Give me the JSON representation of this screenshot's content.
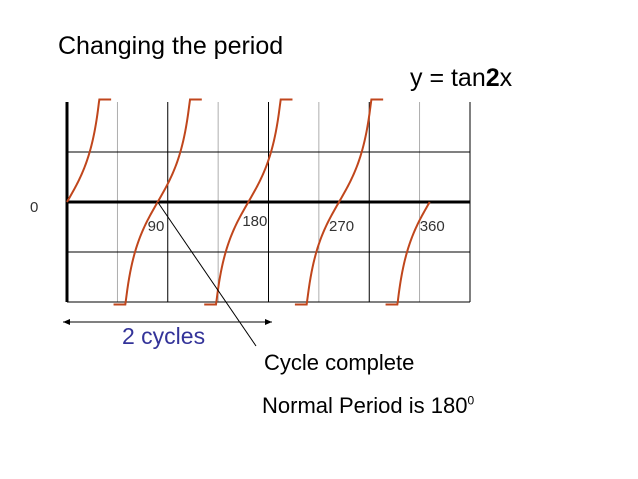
{
  "slide": {
    "title": "Changing the period",
    "equation": {
      "prefix": "y = tan",
      "bold": "2",
      "suffix": "x"
    },
    "span_label": "2 cycles",
    "note_complete": "Cycle complete",
    "note_period": "Normal Period is 180",
    "note_period_degree": "0"
  },
  "colors": {
    "curve": "#c0461c",
    "grid": "#000000",
    "span_label": "#333399"
  },
  "chart_data": {
    "type": "line",
    "function": "y = tan(2x)",
    "x_unit": "degrees",
    "xlim": [
      0,
      400
    ],
    "ylim": [
      -2,
      2
    ],
    "origin_label": "0",
    "x_tick_labels": [
      {
        "x": 90,
        "label": "90"
      },
      {
        "x": 180,
        "label": "180"
      },
      {
        "x": 270,
        "label": "270"
      },
      {
        "x": 360,
        "label": "360"
      }
    ],
    "asymptotes": [
      45,
      135,
      225,
      315
    ],
    "branches": [
      [
        0,
        45
      ],
      [
        45,
        135
      ],
      [
        135,
        225
      ],
      [
        225,
        315
      ],
      [
        315,
        360
      ]
    ],
    "grid": true,
    "annotations": [
      {
        "text": "Cycle complete",
        "points_to_x": 90
      },
      {
        "text": "2 cycles",
        "span": [
          0,
          180
        ]
      }
    ]
  }
}
